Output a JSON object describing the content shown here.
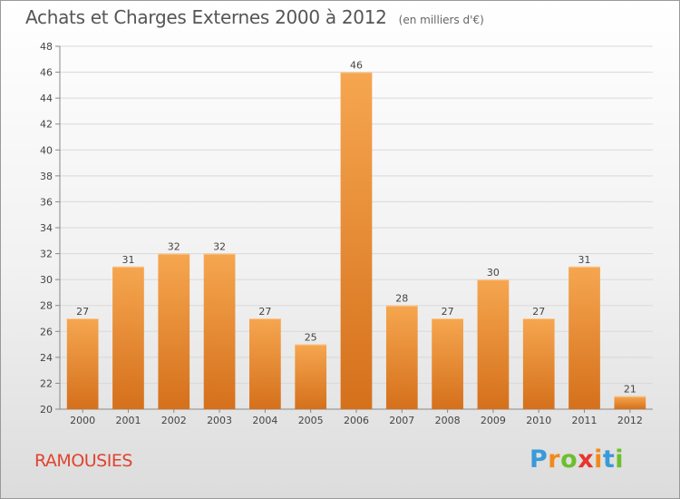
{
  "header": {
    "title": "Achats et Charges Externes 2000 à 2012",
    "unit": "(en milliers d'€)"
  },
  "location": "RAMOUSIES",
  "brand": {
    "letters": [
      "P",
      "r",
      "o",
      "x",
      "i",
      "t",
      "i"
    ],
    "colors": [
      "#3a9ad9",
      "#f08a1c",
      "#6cbf2f",
      "#e8352e",
      "#f08a1c",
      "#3a9ad9",
      "#6cbf2f"
    ]
  },
  "chart_data": {
    "type": "bar",
    "title": "Achats et Charges Externes 2000 à 2012",
    "subtitle": "(en milliers d'€)",
    "categories": [
      "2000",
      "2001",
      "2002",
      "2003",
      "2004",
      "2005",
      "2006",
      "2007",
      "2008",
      "2009",
      "2010",
      "2011",
      "2012"
    ],
    "values": [
      27,
      31,
      32,
      32,
      27,
      25,
      46,
      28,
      27,
      30,
      27,
      31,
      21
    ],
    "ylim": [
      20,
      48
    ],
    "yticks": [
      20,
      22,
      24,
      26,
      28,
      30,
      32,
      34,
      36,
      38,
      40,
      42,
      44,
      46,
      48
    ],
    "grid": true,
    "bar_color_top": "#f6a650",
    "bar_color_bottom": "#d5701b",
    "xlabel": "",
    "ylabel": ""
  }
}
